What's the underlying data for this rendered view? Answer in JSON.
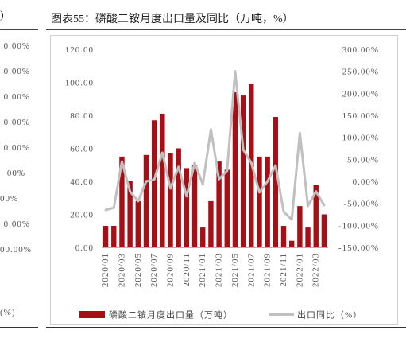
{
  "left_fragment": {
    "top_text": ")",
    "tick_labels": [
      "0.00%",
      "0.00%",
      "0.00%",
      "0.00%",
      "0.00%",
      "00%",
      "00%",
      "0.00%",
      "00.00%"
    ],
    "unit_label": "(%)"
  },
  "chart_data": {
    "type": "bar",
    "title": "图表55：磷酸二铵月度出口量及同比（万吨，%）",
    "categories": [
      "2020/01",
      "2020/02",
      "2020/03",
      "2020/04",
      "2020/05",
      "2020/06",
      "2020/07",
      "2020/08",
      "2020/09",
      "2020/10",
      "2020/11",
      "2020/12",
      "2021/01",
      "2021/02",
      "2021/03",
      "2021/04",
      "2021/05",
      "2021/06",
      "2021/07",
      "2021/08",
      "2021/09",
      "2021/10",
      "2021/11",
      "2021/12",
      "2022/01",
      "2022/02",
      "2022/03",
      "2022/04"
    ],
    "x_tick_labels": [
      "2020/01",
      "2020/03",
      "2020/05",
      "2020/07",
      "2020/09",
      "2020/11",
      "2021/01",
      "2021/03",
      "2021/05",
      "2021/07",
      "2021/09",
      "2021/11",
      "2022/01",
      "2022/03"
    ],
    "series": [
      {
        "name": "磷酸二铵月度出口量（万吨）",
        "type": "bar",
        "axis": "left",
        "color": "#a50f15",
        "values": [
          13,
          13,
          55,
          40,
          28,
          56,
          77,
          81,
          57,
          60,
          48,
          50,
          12,
          28,
          52,
          47,
          94,
          92,
          99,
          55,
          55,
          79,
          13,
          4,
          25,
          12,
          38,
          20
        ]
      },
      {
        "name": "出口同比（%）",
        "type": "line",
        "axis": "right",
        "color": "#c0c0c0",
        "values": [
          -65,
          -60,
          45,
          -23,
          -45,
          0,
          4,
          65,
          -16,
          33,
          -34,
          42,
          -7,
          118,
          5,
          24,
          250,
          72,
          42,
          -25,
          0,
          36,
          -69,
          -87,
          110,
          -56,
          -23,
          -54
        ]
      }
    ],
    "y_left": {
      "ylim": [
        0,
        120
      ],
      "tick_labels": [
        "0.00",
        "20.00",
        "40.00",
        "60.00",
        "80.00",
        "100.00",
        "120.00"
      ]
    },
    "y_right": {
      "ylim": [
        -150,
        300
      ],
      "tick_labels": [
        "-150.00%",
        "-100.00%",
        "-50.00%",
        "0.00%",
        "50.00%",
        "100.00%",
        "150.00%",
        "200.00%",
        "250.00%",
        "300.00%"
      ]
    },
    "legend_position": "bottom",
    "grid": false
  }
}
